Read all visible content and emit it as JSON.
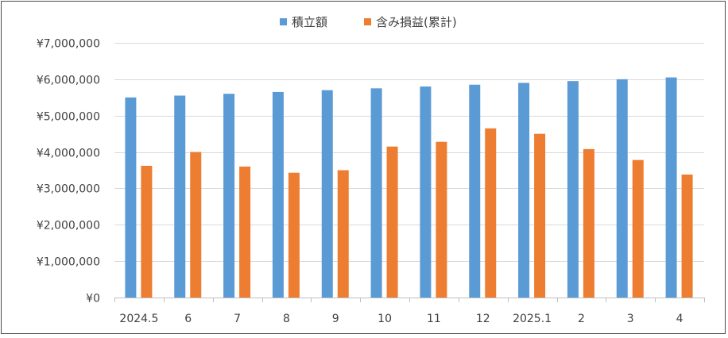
{
  "chart_data": {
    "type": "bar",
    "categories": [
      "2024.5",
      "6",
      "7",
      "8",
      "9",
      "10",
      "11",
      "12",
      "2025.1",
      "2",
      "3",
      "4"
    ],
    "series": [
      {
        "name": "積立額",
        "color": "#5B9BD5",
        "values": [
          5500000,
          5550000,
          5600000,
          5650000,
          5700000,
          5750000,
          5800000,
          5850000,
          5900000,
          5950000,
          6000000,
          6050000
        ]
      },
      {
        "name": "含み損益(累計)",
        "color": "#ED7D31",
        "values": [
          3620000,
          4000000,
          3600000,
          3430000,
          3500000,
          4150000,
          4280000,
          4650000,
          4500000,
          4080000,
          3780000,
          3380000
        ]
      }
    ],
    "ylim": [
      0,
      7000000
    ],
    "yticks": [
      0,
      1000000,
      2000000,
      3000000,
      4000000,
      5000000,
      6000000,
      7000000
    ],
    "ytick_labels": [
      "¥0",
      "¥1,000,000",
      "¥2,000,000",
      "¥3,000,000",
      "¥4,000,000",
      "¥5,000,000",
      "¥6,000,000",
      "¥7,000,000"
    ],
    "grid": true,
    "legend_position": "top-center"
  }
}
